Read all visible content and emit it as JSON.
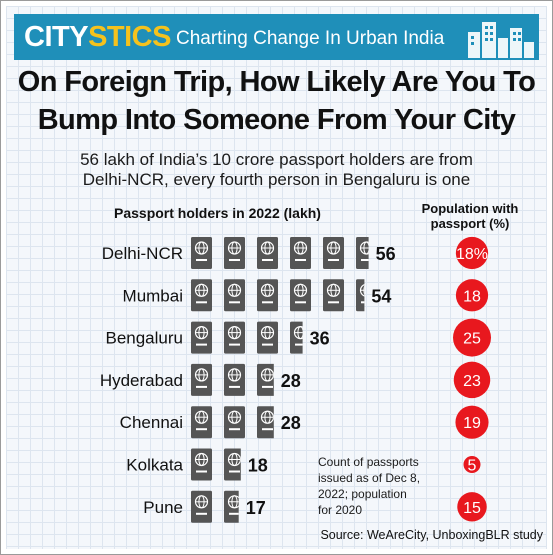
{
  "header": {
    "brand_part1": "CITY",
    "brand_part2": "STICS",
    "tagline": "Charting Change In Urban India"
  },
  "title_line1": "On Foreign Trip, How Likely Are You To",
  "title_line2": "Bump Into Someone From Your City",
  "subtitle_line1": "56 lakh of India’s 10 crore passport holders are from",
  "subtitle_line2": "Delhi-NCR, every fourth person in Bengaluru is one",
  "note_lines": [
    "Count of passports",
    "issued as of Dec 8,",
    "2022; population",
    "for 2020"
  ],
  "source": "Source: WeAreCity, UnboxingBLR study",
  "colors": {
    "header": "#1f8fb9",
    "accent": "#f4c21d",
    "passport": "#555555",
    "circle": "#e8181e"
  },
  "chart_data": {
    "type": "bar",
    "title": "Passport holders in 2022 (lakh)",
    "secondary_title": "Population with passport (%)",
    "icon": "passport-icon",
    "categories": [
      "Delhi-NCR",
      "Mumbai",
      "Bengaluru",
      "Hyderabad",
      "Chennai",
      "Kolkata",
      "Pune"
    ],
    "values": [
      56,
      54,
      36,
      28,
      28,
      18,
      17
    ],
    "value_labels": [
      "56",
      "54",
      "36",
      "28",
      "28",
      "18",
      "17"
    ],
    "population_pct": [
      18,
      18,
      25,
      23,
      19,
      5,
      15
    ],
    "population_labels": [
      "18%",
      "18",
      "25",
      "23",
      "19",
      "5",
      "15"
    ],
    "units_per_icon": 10
  }
}
